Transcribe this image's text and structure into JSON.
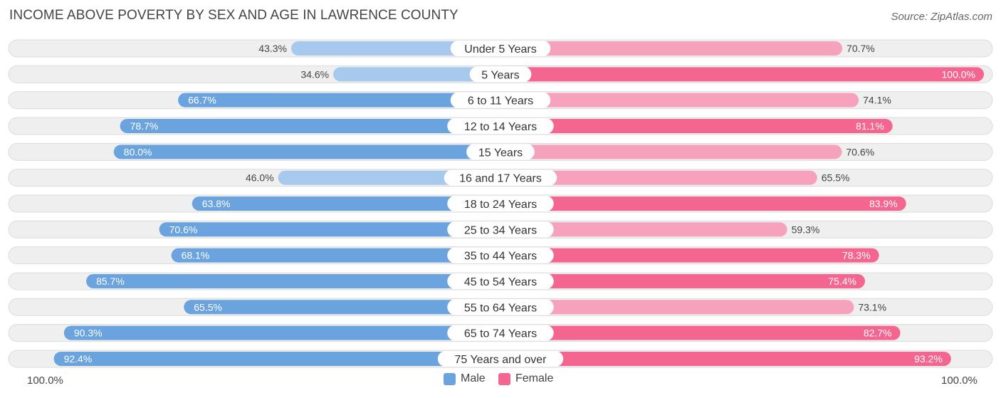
{
  "header": {
    "title": "INCOME ABOVE POVERTY BY SEX AND AGE IN LAWRENCE COUNTY",
    "source": "Source: ZipAtlas.com"
  },
  "legend": {
    "male": "Male",
    "female": "Female"
  },
  "axis": {
    "left_label": "100.0%",
    "right_label": "100.0%"
  },
  "colors": {
    "male": "#6aa3dd",
    "male_light": "#a8c9ee",
    "female": "#f4668f",
    "female_light": "#f7a2bc",
    "track": "#efefef"
  },
  "chart_data": {
    "type": "bar",
    "orientation": "diverging-horizontal",
    "title": "INCOME ABOVE POVERTY BY SEX AND AGE IN LAWRENCE COUNTY",
    "categories": [
      "Under 5 Years",
      "5 Years",
      "6 to 11 Years",
      "12 to 14 Years",
      "15 Years",
      "16 and 17 Years",
      "18 to 24 Years",
      "25 to 34 Years",
      "35 to 44 Years",
      "45 to 54 Years",
      "55 to 64 Years",
      "65 to 74 Years",
      "75 Years and over"
    ],
    "series": [
      {
        "name": "Male",
        "values": [
          43.3,
          34.6,
          66.7,
          78.7,
          80.0,
          46.0,
          63.8,
          70.6,
          68.1,
          85.7,
          65.5,
          90.3,
          92.4
        ],
        "labels": [
          "43.3%",
          "34.6%",
          "66.7%",
          "78.7%",
          "80.0%",
          "46.0%",
          "63.8%",
          "70.6%",
          "68.1%",
          "85.7%",
          "65.5%",
          "90.3%",
          "92.4%"
        ]
      },
      {
        "name": "Female",
        "values": [
          70.7,
          100.0,
          74.1,
          81.1,
          70.6,
          65.5,
          83.9,
          59.3,
          78.3,
          75.4,
          73.1,
          82.7,
          93.2
        ],
        "labels": [
          "70.7%",
          "100.0%",
          "74.1%",
          "81.1%",
          "70.6%",
          "65.5%",
          "83.9%",
          "59.3%",
          "78.3%",
          "75.4%",
          "73.1%",
          "82.7%",
          "93.2%"
        ]
      }
    ],
    "xlim": [
      0,
      100
    ],
    "legend_position": "bottom-center"
  }
}
